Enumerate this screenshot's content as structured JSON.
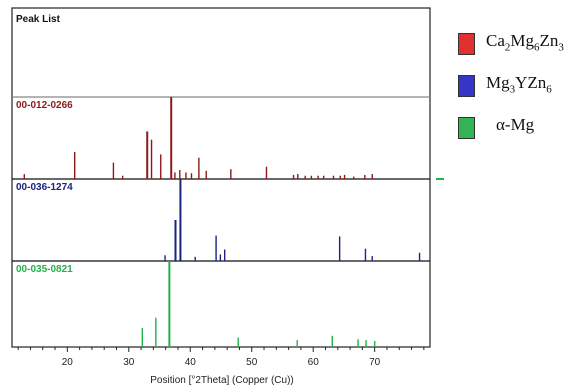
{
  "chart_data": {
    "type": "bar",
    "title": "Peak List",
    "xlabel": "Position [°2Theta] (Copper (Cu))",
    "xlim": [
      11,
      79
    ],
    "xticks": [
      20,
      30,
      40,
      50,
      60,
      70
    ],
    "panels": [
      {
        "name": "00-012-0266",
        "color": "#8b1a1a",
        "peaks": [
          [
            13.0,
            6
          ],
          [
            21.2,
            33
          ],
          [
            27.5,
            20
          ],
          [
            29.0,
            4
          ],
          [
            33.0,
            58
          ],
          [
            33.7,
            48
          ],
          [
            35.2,
            30
          ],
          [
            36.9,
            100
          ],
          [
            37.5,
            8
          ],
          [
            38.3,
            11
          ],
          [
            39.3,
            8
          ],
          [
            40.2,
            7
          ],
          [
            41.4,
            26
          ],
          [
            42.6,
            10
          ],
          [
            46.6,
            12
          ],
          [
            52.4,
            15
          ],
          [
            56.8,
            5
          ],
          [
            57.5,
            6
          ],
          [
            58.7,
            4
          ],
          [
            59.7,
            4
          ],
          [
            60.8,
            4
          ],
          [
            61.7,
            4
          ],
          [
            63.3,
            4
          ],
          [
            64.4,
            4
          ],
          [
            65.1,
            5
          ],
          [
            66.6,
            3
          ],
          [
            68.4,
            5
          ],
          [
            69.6,
            6
          ]
        ]
      },
      {
        "name": "00-036-1274",
        "color": "#1a237e",
        "peaks": [
          [
            35.9,
            7
          ],
          [
            37.6,
            50
          ],
          [
            38.4,
            100
          ],
          [
            40.8,
            5
          ],
          [
            44.2,
            31
          ],
          [
            44.9,
            8
          ],
          [
            45.6,
            14
          ],
          [
            64.3,
            30
          ],
          [
            68.5,
            15
          ],
          [
            69.6,
            6
          ],
          [
            77.3,
            10
          ]
        ]
      },
      {
        "name": "00-035-0821",
        "color": "#22b14c",
        "peaks": [
          [
            32.2,
            22
          ],
          [
            34.4,
            34
          ],
          [
            36.6,
            100
          ],
          [
            47.8,
            11
          ],
          [
            57.4,
            8
          ],
          [
            63.1,
            13
          ],
          [
            67.3,
            9
          ],
          [
            68.6,
            8
          ],
          [
            70.0,
            7
          ]
        ]
      }
    ],
    "legend": {
      "placement": "right",
      "entries": [
        {
          "label": "Ca",
          "sub1": "2",
          "mid1": "Mg",
          "sub2": "6",
          "mid2": "Zn",
          "sub3": "3",
          "color": "#e03030"
        },
        {
          "label": "Mg",
          "sub1": "3",
          "mid1": "YZn",
          "sub2": "6",
          "mid2": "",
          "sub3": "",
          "color": "#3535c8"
        },
        {
          "label": "α-Mg",
          "sub1": "",
          "mid1": "",
          "sub2": "",
          "mid2": "",
          "sub3": "",
          "color": "#33b556"
        }
      ]
    }
  }
}
